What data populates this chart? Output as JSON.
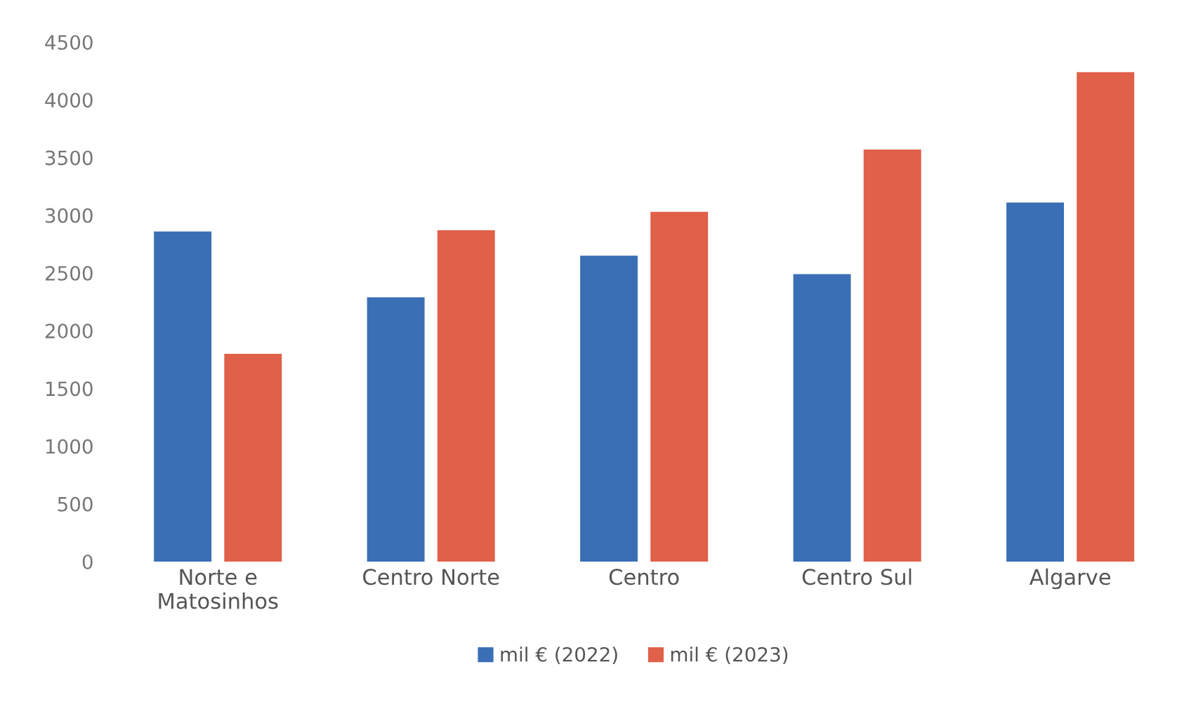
{
  "chart_data": {
    "type": "bar",
    "categories": [
      "Norte e\nMatosinhos",
      "Centro Norte",
      "Centro",
      "Centro Sul",
      "Algarve"
    ],
    "series": [
      {
        "name": "mil € (2022)",
        "color": "#3a6fb5",
        "values": [
          2860,
          2290,
          2650,
          2490,
          3110
        ]
      },
      {
        "name": "mil € (2023)",
        "color": "#e0604a",
        "values": [
          1800,
          2870,
          3030,
          3570,
          4240
        ]
      }
    ],
    "ylim": [
      0,
      4500
    ],
    "yticks": [
      0,
      500,
      1000,
      1500,
      2000,
      2500,
      3000,
      3500,
      4000,
      4500
    ],
    "grid": false,
    "legend": "bottom"
  }
}
